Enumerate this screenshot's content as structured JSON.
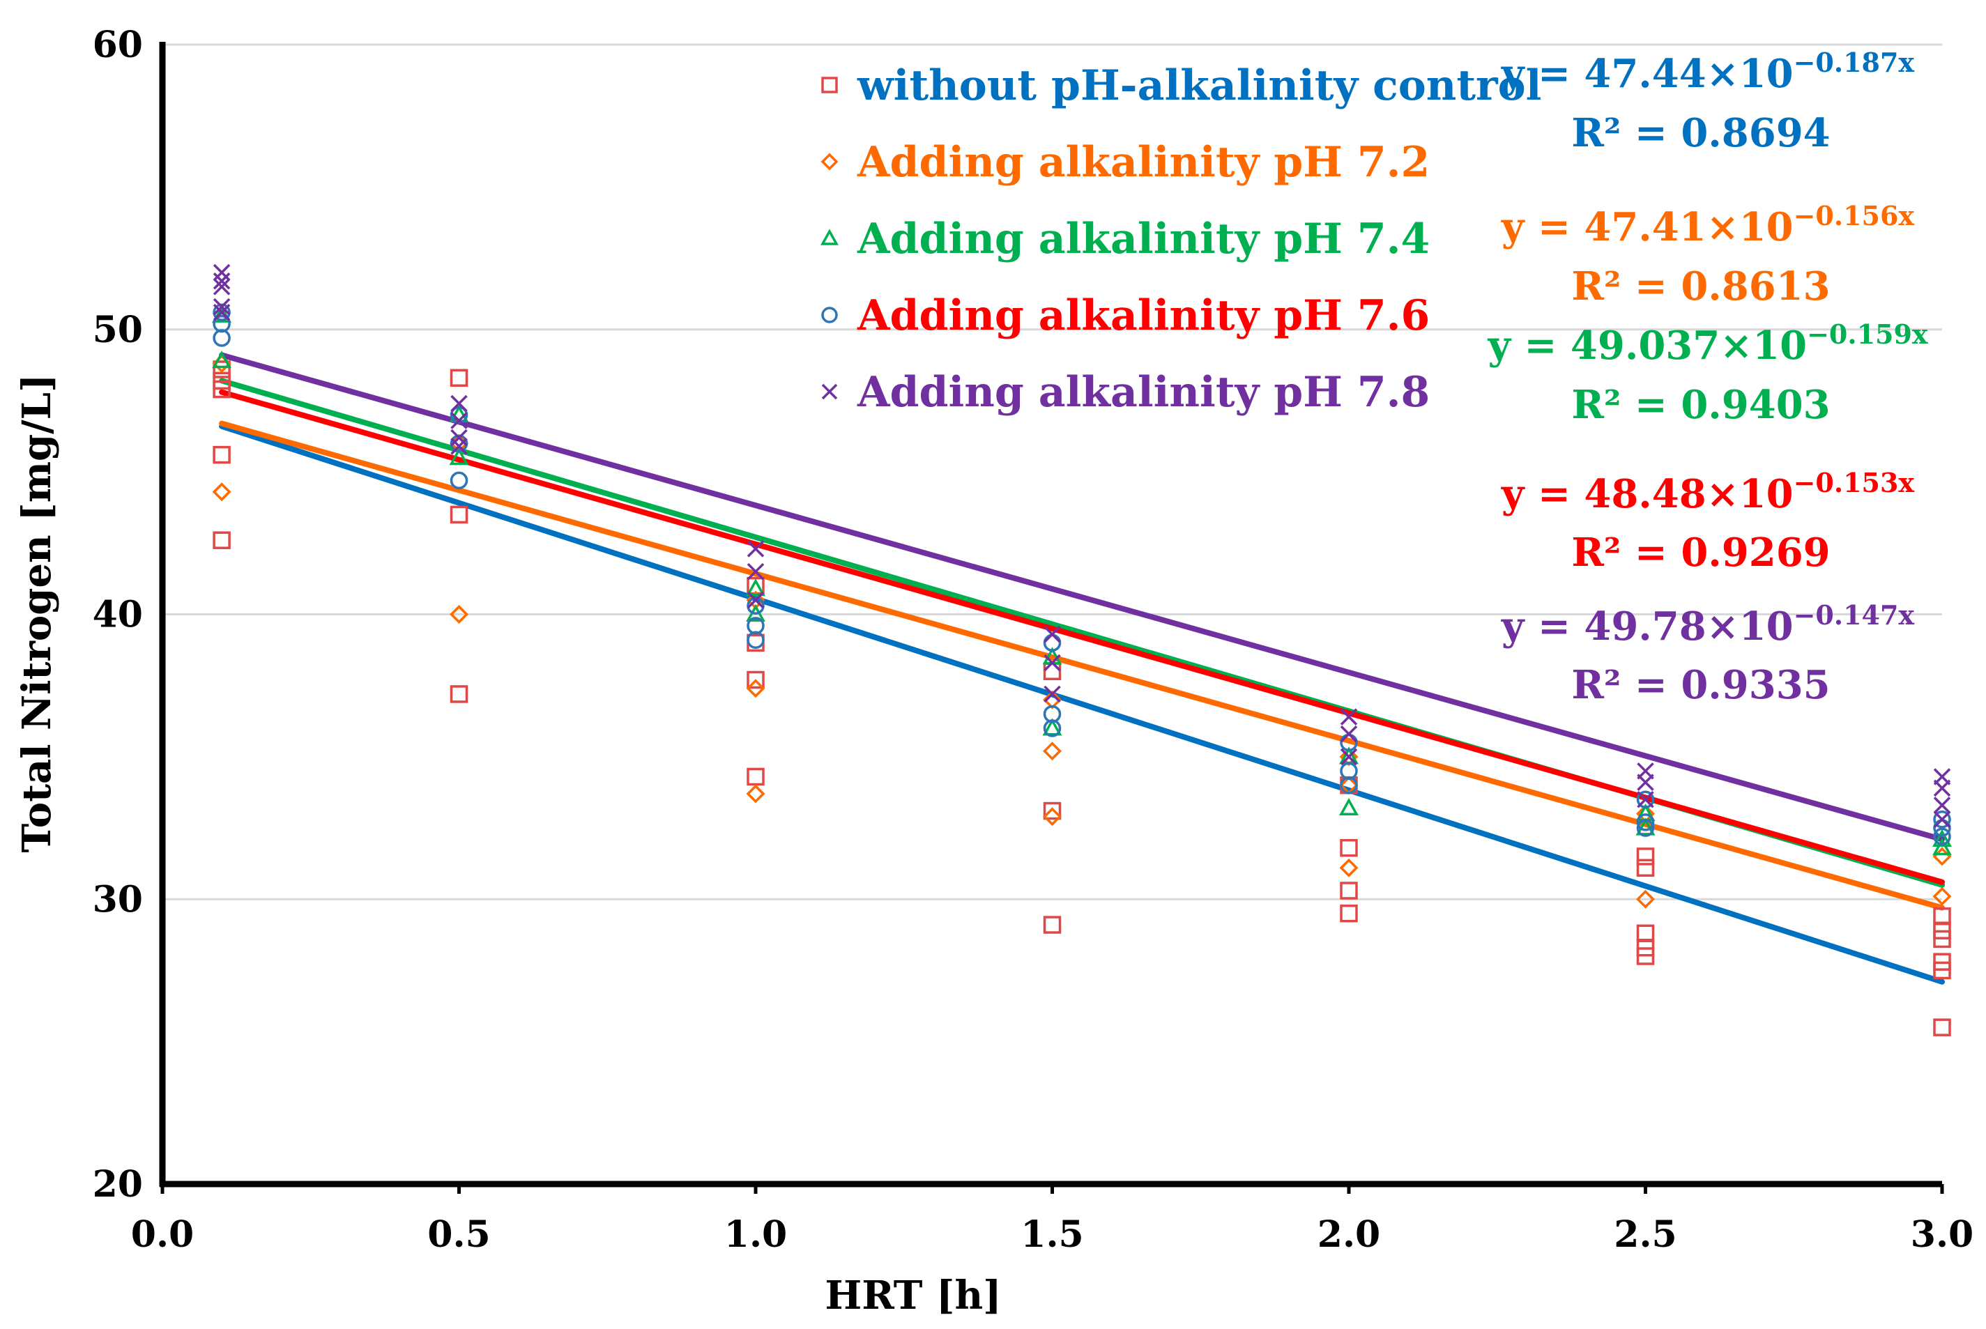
{
  "chart_data": {
    "type": "scatter",
    "title": "",
    "xlabel": "HRT [h]",
    "ylabel": "Total Nitrogen [mg/L]",
    "xlim": [
      0,
      3
    ],
    "ylim": [
      20,
      60
    ],
    "xticks": [
      "0.0",
      "0.5",
      "1.0",
      "1.5",
      "2.0",
      "2.5",
      "3.0"
    ],
    "yticks": [
      "20",
      "30",
      "40",
      "50",
      "60"
    ],
    "grid": "horizontal",
    "legend_position": "top-center",
    "series": [
      {
        "name": "without pH-alkalinity control",
        "color": "#0070C0",
        "marker_color": "#E04848",
        "marker": "square",
        "equation": "y = 47.44×10",
        "exponent": "−0.187x",
        "r2": "R² = 0.8694",
        "trend": [
          [
            0.1,
            46.6
          ],
          [
            3.0,
            27.1
          ]
        ],
        "points": [
          [
            0.1,
            48.6
          ],
          [
            0.1,
            48.2
          ],
          [
            0.1,
            47.9
          ],
          [
            0.1,
            45.6
          ],
          [
            0.1,
            42.6
          ],
          [
            0.5,
            48.3
          ],
          [
            0.5,
            43.5
          ],
          [
            0.5,
            37.2
          ],
          [
            1.0,
            41.0
          ],
          [
            1.0,
            39.0
          ],
          [
            1.0,
            37.7
          ],
          [
            1.0,
            34.3
          ],
          [
            1.5,
            38.0
          ],
          [
            1.5,
            33.1
          ],
          [
            1.5,
            29.1
          ],
          [
            2.0,
            34.0
          ],
          [
            2.0,
            31.8
          ],
          [
            2.0,
            30.3
          ],
          [
            2.0,
            29.5
          ],
          [
            2.5,
            31.5
          ],
          [
            2.5,
            31.1
          ],
          [
            2.5,
            28.8
          ],
          [
            2.5,
            28.3
          ],
          [
            2.5,
            28.0
          ],
          [
            3.0,
            29.4
          ],
          [
            3.0,
            28.9
          ],
          [
            3.0,
            28.6
          ],
          [
            3.0,
            27.8
          ],
          [
            3.0,
            27.5
          ],
          [
            3.0,
            25.5
          ]
        ]
      },
      {
        "name": "Adding alkalinity pH 7.2",
        "color": "#FF6A00",
        "marker_color": "#FF6A00",
        "marker": "diamond",
        "equation": "y = 47.41×10",
        "exponent": "−0.156x",
        "r2": "R² = 0.8613",
        "trend": [
          [
            0.1,
            46.7
          ],
          [
            3.0,
            29.7
          ]
        ],
        "points": [
          [
            0.1,
            48.8
          ],
          [
            0.1,
            44.3
          ],
          [
            0.5,
            46.0
          ],
          [
            0.5,
            40.0
          ],
          [
            1.0,
            40.5
          ],
          [
            1.0,
            37.4
          ],
          [
            1.0,
            33.7
          ],
          [
            1.5,
            37.0
          ],
          [
            1.5,
            35.2
          ],
          [
            1.5,
            32.9
          ],
          [
            2.0,
            35.0
          ],
          [
            2.0,
            34.0
          ],
          [
            2.0,
            31.1
          ],
          [
            2.5,
            33.0
          ],
          [
            2.5,
            30.0
          ],
          [
            3.0,
            31.5
          ],
          [
            3.0,
            30.1
          ]
        ]
      },
      {
        "name": "Adding alkalinity pH 7.4",
        "color": "#00B050",
        "marker_color": "#00B050",
        "marker": "triangle",
        "equation": "y = 49.037×10",
        "exponent": "−0.159x",
        "r2": "R² = 0.9403",
        "trend": [
          [
            0.1,
            48.2
          ],
          [
            3.0,
            30.5
          ]
        ],
        "points": [
          [
            0.1,
            50.5
          ],
          [
            0.1,
            48.9
          ],
          [
            0.5,
            47.0
          ],
          [
            0.5,
            45.5
          ],
          [
            1.0,
            40.9
          ],
          [
            1.0,
            40.0
          ],
          [
            1.5,
            38.5
          ],
          [
            1.5,
            36.0
          ],
          [
            2.0,
            35.0
          ],
          [
            2.0,
            33.2
          ],
          [
            2.5,
            33.0
          ],
          [
            2.5,
            32.5
          ],
          [
            3.0,
            32.1
          ],
          [
            3.0,
            31.8
          ]
        ]
      },
      {
        "name": "Adding alkalinity pH 7.6",
        "color": "#FF0000",
        "marker_color": "#2E75B6",
        "marker": "circle",
        "equation": "y = 48.48×10",
        "exponent": "−0.153x",
        "r2": "R² = 0.9269",
        "trend": [
          [
            0.1,
            47.8
          ],
          [
            3.0,
            30.6
          ]
        ],
        "points": [
          [
            0.1,
            50.6
          ],
          [
            0.1,
            50.2
          ],
          [
            0.1,
            49.7
          ],
          [
            0.5,
            47.0
          ],
          [
            0.5,
            46.0
          ],
          [
            0.5,
            44.7
          ],
          [
            1.0,
            40.3
          ],
          [
            1.0,
            39.6
          ],
          [
            1.0,
            39.1
          ],
          [
            1.5,
            39.0
          ],
          [
            1.5,
            36.5
          ],
          [
            1.5,
            36.0
          ],
          [
            2.0,
            35.5
          ],
          [
            2.0,
            34.5
          ],
          [
            2.0,
            34.0
          ],
          [
            2.5,
            33.5
          ],
          [
            2.5,
            32.7
          ],
          [
            2.5,
            32.5
          ],
          [
            3.0,
            32.8
          ],
          [
            3.0,
            32.5
          ],
          [
            3.0,
            32.2
          ]
        ]
      },
      {
        "name": "Adding alkalinity pH 7.8",
        "color": "#7030A0",
        "marker_color": "#7030A0",
        "marker": "x",
        "equation": "y = 49.78×10",
        "exponent": "−0.147x",
        "r2": "R² = 0.9335",
        "trend": [
          [
            0.1,
            49.1
          ],
          [
            3.0,
            32.1
          ]
        ],
        "points": [
          [
            0.1,
            52.0
          ],
          [
            0.1,
            51.7
          ],
          [
            0.1,
            51.5
          ],
          [
            0.1,
            50.8
          ],
          [
            0.1,
            50.6
          ],
          [
            0.5,
            47.4
          ],
          [
            0.5,
            46.8
          ],
          [
            0.5,
            46.2
          ],
          [
            0.5,
            45.9
          ],
          [
            1.0,
            42.3
          ],
          [
            1.0,
            41.5
          ],
          [
            1.0,
            40.5
          ],
          [
            1.5,
            39.3
          ],
          [
            1.5,
            38.3
          ],
          [
            1.5,
            37.2
          ],
          [
            2.0,
            36.4
          ],
          [
            2.0,
            35.8
          ],
          [
            2.0,
            35.0
          ],
          [
            2.5,
            34.5
          ],
          [
            2.5,
            34.1
          ],
          [
            2.5,
            33.5
          ],
          [
            3.0,
            34.3
          ],
          [
            3.0,
            33.9
          ],
          [
            3.0,
            33.3
          ],
          [
            3.0,
            32.8
          ]
        ]
      }
    ]
  }
}
